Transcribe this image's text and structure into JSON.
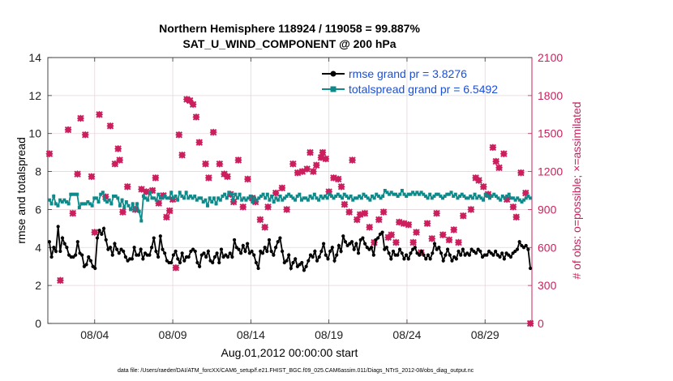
{
  "chart_data": {
    "type": "line",
    "title_line1": "Northern Hemisphere 118924 / 119058 = 99.887%",
    "title_line2": "SAT_U_WIND_COMPONENT @ 200 hPa",
    "xlabel": "Aug.01,2012 00:00:00 start",
    "ylabel_left": "rmse and totalspread",
    "ylabel_right": "# of obs: o=possible; ×=assimilated",
    "footnote": "data file: /Users/raeder/DAI/ATM_forcXX/CAM6_setup/f.e21.FHIST_BGC.f09_025.CAM6assim.011/Diags_NTrS_2012-08/obs_diag_output.nc",
    "x_unit": "days since Aug.01,2012 00:00",
    "xlim": [
      0.0,
      31.0
    ],
    "ylim_left": [
      0,
      14
    ],
    "ylim_right": [
      0,
      2100
    ],
    "x_ticks": [
      3,
      8,
      13,
      18,
      23,
      28
    ],
    "x_tick_labels": [
      "08/04",
      "08/09",
      "08/14",
      "08/19",
      "08/24",
      "08/29"
    ],
    "y_ticks_left": [
      0,
      2,
      4,
      6,
      8,
      10,
      12,
      14
    ],
    "y_ticks_right": [
      0,
      300,
      600,
      900,
      1200,
      1500,
      1800,
      2100
    ],
    "grid": true,
    "legend_position": "top-right",
    "colors": {
      "rmse": "#000000",
      "spread": "#0f8a8a",
      "obs": "#cc1f5e",
      "legend_text": "#1a4fd6",
      "right_axis": "#cc1f5e"
    },
    "series": [
      {
        "name": "rmse grand pr = 3.8276",
        "color": "#000000",
        "values": [
          4.3,
          3.5,
          4.0,
          3.8,
          5.1,
          3.8,
          4.5,
          4.2,
          4.0,
          3.6,
          3.5,
          3.5,
          3.6,
          4.3,
          3.7,
          3.6,
          3.0,
          3.1,
          3.5,
          3.3,
          3.0,
          2.9,
          4.5,
          4.9,
          4.7,
          5.0,
          4.4,
          3.9,
          4.0,
          3.6,
          4.2,
          3.9,
          3.7,
          3.9,
          3.8,
          3.5,
          3.3,
          3.4,
          3.4,
          4.0,
          3.6,
          3.6,
          3.9,
          3.4,
          3.7,
          3.6,
          3.6,
          4.0,
          4.5,
          3.8,
          3.5,
          4.6,
          3.9,
          3.7,
          3.3,
          3.2,
          3.2,
          3.6,
          3.8,
          3.4,
          3.2,
          3.7,
          3.3,
          3.5,
          3.5,
          3.8,
          3.9,
          3.8,
          3.2,
          3.0,
          3.6,
          3.7,
          3.5,
          3.8,
          3.3,
          3.2,
          3.5,
          3.7,
          3.2,
          3.9,
          3.5,
          3.6,
          3.5,
          3.7,
          3.5,
          4.4,
          4.0,
          3.9,
          3.7,
          4.1,
          3.8,
          4.2,
          3.7,
          3.8,
          3.6,
          3.2,
          2.9,
          3.8,
          3.7,
          4.0,
          3.8,
          4.4,
          3.8,
          3.6,
          4.0,
          4.3,
          4.5,
          3.8,
          3.2,
          3.3,
          3.6,
          2.9,
          3.2,
          3.4,
          3.0,
          3.1,
          3.2,
          2.8,
          3.0,
          3.3,
          3.6,
          3.5,
          3.8,
          3.3,
          3.5,
          3.8,
          4.2,
          3.6,
          3.4,
          3.8,
          4.0,
          3.3,
          3.6,
          4.1,
          3.8,
          4.6,
          4.3,
          4.1,
          4.2,
          4.3,
          3.9,
          4.2,
          3.7,
          4.4,
          4.5,
          4.2,
          4.0,
          3.9,
          4.0,
          3.6,
          4.4,
          4.5,
          4.7,
          4.8,
          3.9,
          4.0,
          3.7,
          3.4,
          3.8,
          3.6,
          3.6,
          3.9,
          3.7,
          3.4,
          3.6,
          3.4,
          3.7,
          3.9,
          4.0,
          3.7,
          3.6,
          3.8,
          3.6,
          3.4,
          3.6,
          3.4,
          3.7,
          4.2,
          3.9,
          4.0,
          3.7,
          3.3,
          3.6,
          3.9,
          3.6,
          3.3,
          3.5,
          3.4,
          3.8,
          3.6,
          3.9,
          3.6,
          3.7,
          3.6,
          3.9,
          3.8,
          3.7,
          3.9,
          3.8,
          3.5,
          3.6,
          3.6,
          3.8,
          3.7,
          3.6,
          3.8,
          3.6,
          3.5,
          3.7,
          3.4,
          3.7,
          3.6,
          3.5,
          3.7,
          3.8,
          3.9,
          4.3,
          4.1,
          4.0,
          4.1,
          3.9,
          2.9
        ]
      },
      {
        "name": "totalspread grand pr = 6.5492",
        "color": "#0f8a8a",
        "values": [
          6.5,
          6.3,
          6.7,
          6.3,
          6.2,
          6.5,
          6.4,
          6.5,
          6.4,
          6.3,
          6.8,
          6.8,
          6.8,
          6.8,
          6.1,
          6.3,
          6.3,
          6.3,
          6.4,
          6.3,
          6.2,
          6.6,
          6.6,
          6.4,
          6.8,
          6.9,
          6.5,
          6.4,
          6.5,
          6.3,
          6.7,
          6.7,
          6.6,
          6.2,
          6.5,
          6.1,
          6.4,
          6.2,
          6.0,
          6.3,
          6.0,
          6.3,
          5.9,
          5.4,
          6.7,
          6.6,
          6.5,
          6.9,
          6.6,
          6.6,
          6.5,
          6.8,
          6.6,
          6.6,
          6.7,
          6.6,
          6.6,
          6.9,
          6.6,
          6.7,
          6.5,
          6.9,
          6.7,
          6.6,
          6.9,
          6.6,
          6.7,
          6.6,
          6.7,
          6.5,
          6.6,
          6.6,
          6.4,
          6.5,
          6.2,
          6.6,
          6.4,
          6.6,
          6.3,
          6.6,
          6.5,
          6.7,
          6.8,
          6.6,
          6.9,
          6.8,
          6.5,
          6.8,
          6.6,
          6.8,
          6.5,
          6.6,
          6.5,
          6.6,
          6.7,
          6.4,
          6.6,
          6.5,
          6.6,
          6.7,
          6.8,
          6.6,
          6.8,
          6.5,
          6.7,
          6.4,
          6.6,
          6.5,
          6.7,
          6.5,
          6.6,
          6.7,
          6.8,
          6.7,
          6.6,
          6.5,
          6.7,
          6.8,
          6.5,
          6.6,
          6.6,
          6.5,
          6.7,
          6.6,
          6.8,
          6.6,
          6.5,
          6.7,
          6.6,
          6.7,
          6.6,
          6.8,
          6.7,
          6.6,
          6.7,
          6.8,
          6.7,
          6.6,
          6.8,
          6.7,
          6.6,
          6.7,
          6.5,
          6.6,
          6.6,
          6.7,
          6.6,
          6.8,
          6.7,
          6.6,
          6.5,
          6.7,
          6.6,
          6.8,
          6.7,
          6.6,
          6.7,
          7.0,
          6.9,
          6.8,
          6.9,
          6.8,
          6.8,
          6.7,
          6.8,
          7.0,
          6.8,
          6.7,
          6.8,
          6.8,
          6.9,
          6.8,
          6.9,
          6.8,
          6.9,
          6.8,
          6.7,
          6.6,
          6.8,
          6.6,
          6.7,
          6.8,
          6.8,
          6.7,
          6.6,
          6.7,
          6.8,
          6.8,
          6.9,
          6.7,
          6.8,
          6.6,
          6.7,
          6.8,
          6.7,
          6.6,
          6.6,
          6.7,
          6.6,
          6.8,
          6.6,
          6.7,
          6.6,
          6.5,
          6.8,
          6.7,
          6.6,
          6.7,
          6.8,
          6.7,
          6.6,
          6.5,
          6.7,
          6.6,
          6.7,
          6.8,
          6.6,
          6.6,
          6.5,
          6.6,
          6.5,
          6.4,
          6.5,
          6.6,
          6.7,
          6.6
        ],
        "_note": "values are interpolated to rmse sample count by script"
      }
    ],
    "obs_assimilated": [
      [
        0.1,
        1340
      ],
      [
        0.8,
        340
      ],
      [
        1.3,
        1530
      ],
      [
        1.6,
        870
      ],
      [
        1.9,
        1180
      ],
      [
        2.1,
        1620
      ],
      [
        2.4,
        1490
      ],
      [
        2.8,
        1160
      ],
      [
        3.0,
        720
      ],
      [
        3.3,
        1650
      ],
      [
        3.7,
        1000
      ],
      [
        4.0,
        1560
      ],
      [
        4.3,
        1260
      ],
      [
        4.5,
        1380
      ],
      [
        4.6,
        1290
      ],
      [
        4.8,
        880
      ],
      [
        5.1,
        1080
      ],
      [
        5.6,
        900
      ],
      [
        6.0,
        1060
      ],
      [
        6.3,
        1040
      ],
      [
        6.7,
        1050
      ],
      [
        6.9,
        1150
      ],
      [
        7.1,
        950
      ],
      [
        7.4,
        1010
      ],
      [
        7.6,
        840
      ],
      [
        7.8,
        890
      ],
      [
        8.0,
        980
      ],
      [
        8.2,
        440
      ],
      [
        8.4,
        1490
      ],
      [
        8.6,
        1330
      ],
      [
        8.9,
        1770
      ],
      [
        9.1,
        1760
      ],
      [
        9.3,
        1730
      ],
      [
        9.5,
        1630
      ],
      [
        9.7,
        1430
      ],
      [
        10.1,
        1260
      ],
      [
        10.3,
        1150
      ],
      [
        10.6,
        1510
      ],
      [
        11.0,
        1260
      ],
      [
        11.3,
        1180
      ],
      [
        11.5,
        1160
      ],
      [
        11.7,
        1020
      ],
      [
        11.9,
        960
      ],
      [
        12.2,
        1290
      ],
      [
        12.5,
        920
      ],
      [
        12.8,
        1140
      ],
      [
        13.1,
        990
      ],
      [
        13.3,
        960
      ],
      [
        13.6,
        820
      ],
      [
        13.9,
        760
      ],
      [
        14.1,
        920
      ],
      [
        14.6,
        1030
      ],
      [
        15.0,
        1070
      ],
      [
        15.3,
        900
      ],
      [
        15.7,
        1260
      ],
      [
        16.0,
        1190
      ],
      [
        16.3,
        1200
      ],
      [
        16.6,
        1220
      ],
      [
        16.8,
        1350
      ],
      [
        17.0,
        1200
      ],
      [
        17.2,
        1250
      ],
      [
        17.5,
        1310
      ],
      [
        17.6,
        1350
      ],
      [
        17.8,
        1300
      ],
      [
        18.0,
        1040
      ],
      [
        18.3,
        1150
      ],
      [
        18.6,
        1140
      ],
      [
        18.8,
        1080
      ],
      [
        19.0,
        940
      ],
      [
        19.3,
        880
      ],
      [
        19.5,
        1290
      ],
      [
        19.8,
        820
      ],
      [
        20.0,
        860
      ],
      [
        20.3,
        870
      ],
      [
        20.6,
        760
      ],
      [
        20.9,
        640
      ],
      [
        21.2,
        820
      ],
      [
        21.5,
        880
      ],
      [
        21.8,
        680
      ],
      [
        22.0,
        700
      ],
      [
        22.3,
        640
      ],
      [
        22.5,
        800
      ],
      [
        22.8,
        790
      ],
      [
        23.1,
        780
      ],
      [
        23.4,
        640
      ],
      [
        23.6,
        720
      ],
      [
        23.9,
        560
      ],
      [
        24.3,
        790
      ],
      [
        24.6,
        670
      ],
      [
        24.9,
        870
      ],
      [
        25.3,
        700
      ],
      [
        25.7,
        660
      ],
      [
        26.0,
        740
      ],
      [
        26.3,
        640
      ],
      [
        26.6,
        850
      ],
      [
        27.1,
        900
      ],
      [
        27.4,
        1150
      ],
      [
        27.6,
        1130
      ],
      [
        27.9,
        1080
      ],
      [
        28.2,
        1020
      ],
      [
        28.5,
        1390
      ],
      [
        28.7,
        1280
      ],
      [
        28.9,
        1230
      ],
      [
        29.2,
        1340
      ],
      [
        29.4,
        980
      ],
      [
        29.8,
        920
      ],
      [
        30.0,
        840
      ],
      [
        30.3,
        1190
      ],
      [
        30.6,
        1030
      ],
      [
        30.9,
        0
      ]
    ]
  }
}
